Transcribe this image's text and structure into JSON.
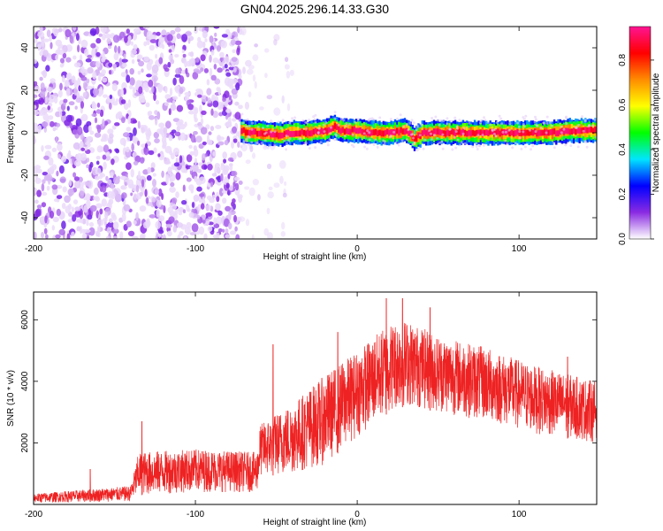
{
  "title": "GN04.2025.296.14.33.G30",
  "chart_data": [
    {
      "type": "heatmap",
      "xlabel": "Height of straight line (km)",
      "ylabel": "Frequency (Hz)",
      "xlim": [
        -200,
        148
      ],
      "ylim": [
        -50,
        50
      ],
      "xticks": [
        -200,
        -100,
        0,
        100
      ],
      "yticks": [
        -40,
        -20,
        0,
        20,
        40
      ],
      "colorbar": {
        "label": "Normalized spectral amplitude",
        "range": [
          0,
          0.95
        ],
        "ticks": [
          0.0,
          0.2,
          0.4,
          0.6,
          0.8
        ],
        "tick_labels": [
          "0.0",
          "0.2",
          "0.4",
          "0.6",
          "0.8"
        ],
        "colormap": [
          "#ffffff",
          "#8a2be2",
          "#0000ff",
          "#00e5ff",
          "#00ff00",
          "#ffff00",
          "#ff8c00",
          "#ff0000",
          "#ff1493"
        ]
      },
      "regions": [
        {
          "x_range": [
            -200,
            -72
          ],
          "content": "broadband noise",
          "freq_range": [
            -50,
            50
          ],
          "amplitude": [
            0.0,
            0.15
          ]
        },
        {
          "x_range": [
            -72,
            -40
          ],
          "content": "sparse noise",
          "freq_range": [
            -50,
            50
          ],
          "amplitude": [
            0.0,
            0.05
          ]
        },
        {
          "x_range": [
            -72,
            148
          ],
          "content": "narrow tone",
          "freq_center": 0,
          "amplitude_peak": 0.9
        }
      ],
      "tone_center": [
        [
          -70,
          0
        ],
        [
          -60,
          0
        ],
        [
          -50,
          -1
        ],
        [
          -40,
          0
        ],
        [
          -30,
          0
        ],
        [
          -20,
          1
        ],
        [
          -15,
          3
        ],
        [
          -10,
          1
        ],
        [
          0,
          1
        ],
        [
          10,
          0
        ],
        [
          20,
          0
        ],
        [
          30,
          1
        ],
        [
          35,
          -3
        ],
        [
          40,
          0
        ],
        [
          60,
          0
        ],
        [
          80,
          0
        ],
        [
          100,
          0
        ],
        [
          120,
          0
        ],
        [
          130,
          1
        ],
        [
          140,
          1
        ],
        [
          148,
          1
        ]
      ]
    },
    {
      "type": "line",
      "xlabel": "Height of straight line (km)",
      "ylabel": "SNR (10 * v/v)",
      "xlim": [
        -200,
        148
      ],
      "ylim": [
        0,
        6900
      ],
      "xticks": [
        -200,
        -100,
        0,
        100
      ],
      "yticks": [
        2000,
        4000,
        6000
      ],
      "series": [
        {
          "color": "#ee2222",
          "envelope": [
            {
              "x": -200,
              "low": 50,
              "high": 350
            },
            {
              "x": -140,
              "low": 100,
              "high": 600
            },
            {
              "x": -135,
              "low": 300,
              "high": 1700
            },
            {
              "x": -100,
              "low": 400,
              "high": 1800
            },
            {
              "x": -62,
              "low": 400,
              "high": 1700
            },
            {
              "x": -60,
              "low": 900,
              "high": 2600
            },
            {
              "x": -40,
              "low": 1000,
              "high": 3300
            },
            {
              "x": -20,
              "low": 1300,
              "high": 4200
            },
            {
              "x": 0,
              "low": 2200,
              "high": 5000
            },
            {
              "x": 20,
              "low": 3000,
              "high": 5900
            },
            {
              "x": 30,
              "low": 3200,
              "high": 6000
            },
            {
              "x": 50,
              "low": 3000,
              "high": 5500
            },
            {
              "x": 80,
              "low": 2700,
              "high": 5100
            },
            {
              "x": 110,
              "low": 2300,
              "high": 4500
            },
            {
              "x": 148,
              "low": 2000,
              "high": 4000
            }
          ],
          "spikes": [
            {
              "x": -165,
              "y": 1150
            },
            {
              "x": -133,
              "y": 2700
            },
            {
              "x": -52,
              "y": 5200
            },
            {
              "x": -12,
              "y": 5600
            },
            {
              "x": 18,
              "y": 6700
            },
            {
              "x": 28,
              "y": 6700
            },
            {
              "x": 45,
              "y": 6400
            },
            {
              "x": 130,
              "y": 4800
            }
          ]
        }
      ]
    }
  ]
}
